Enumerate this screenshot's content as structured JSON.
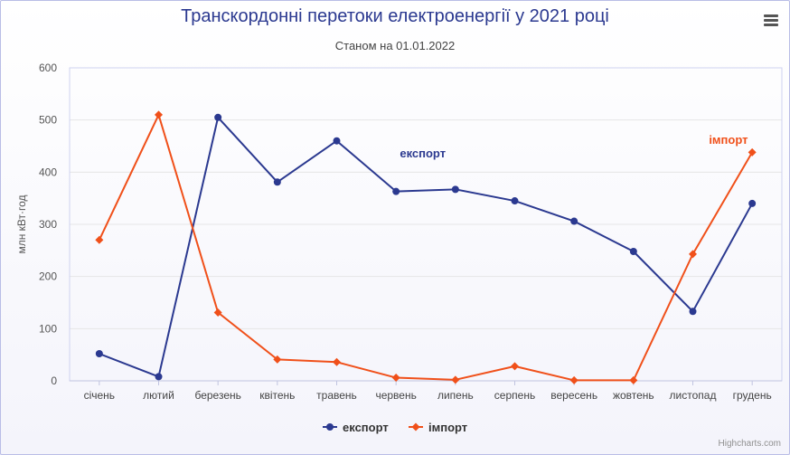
{
  "title": "Транскордонні перетоки електроенергії у 2021 році",
  "subtitle": "Станом на 01.01.2022",
  "credits": "Highcharts.com",
  "menu": {
    "icon": "hamburger-menu-icon"
  },
  "colors": {
    "export": "#2b3990",
    "import": "#f0501a",
    "plot_border": "#cfd3f0",
    "grid": "#e6e6e6"
  },
  "chart_data": {
    "type": "line",
    "title": "Транскордонні перетоки електроенергії у 2021 році",
    "subtitle": "Станом на 01.01.2022",
    "xlabel": "",
    "ylabel": "млн кВт·год",
    "ylim": [
      0,
      600
    ],
    "yticks": [
      "0",
      "100",
      "200",
      "300",
      "400",
      "500",
      "600"
    ],
    "grid": true,
    "legend_position": "bottom-center",
    "categories": [
      "січень",
      "лютий",
      "березень",
      "квітень",
      "травень",
      "червень",
      "липень",
      "серпень",
      "вересень",
      "жовтень",
      "листопад",
      "грудень"
    ],
    "series": [
      {
        "name": "експорт",
        "label": "експорт",
        "color": "#2b3990",
        "marker": "circle",
        "values": [
          52,
          8,
          505,
          381,
          460,
          363,
          367,
          345,
          306,
          248,
          133,
          340
        ]
      },
      {
        "name": "імпорт",
        "label": "імпорт",
        "color": "#f0501a",
        "marker": "diamond",
        "values": [
          270,
          510,
          131,
          41,
          36,
          6,
          2,
          28,
          1,
          1,
          243,
          438
        ]
      }
    ]
  }
}
